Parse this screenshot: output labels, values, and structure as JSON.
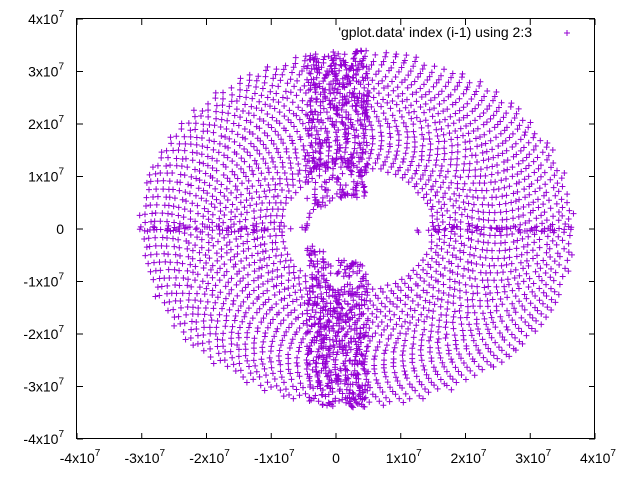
{
  "chart_data": {
    "type": "scatter",
    "title": "",
    "xlabel": "",
    "ylabel": "",
    "xlim": [
      -40000000,
      40000000
    ],
    "ylim": [
      -40000000,
      40000000
    ],
    "x_ticks": [
      {
        "value": -40000000,
        "mantissa": "-4x10",
        "exp": "7"
      },
      {
        "value": -30000000,
        "mantissa": "-3x10",
        "exp": "7"
      },
      {
        "value": -20000000,
        "mantissa": "-2x10",
        "exp": "7"
      },
      {
        "value": -10000000,
        "mantissa": "-1x10",
        "exp": "7"
      },
      {
        "value": 0,
        "mantissa": "0",
        "exp": ""
      },
      {
        "value": 10000000,
        "mantissa": "1x10",
        "exp": "7"
      },
      {
        "value": 20000000,
        "mantissa": "2x10",
        "exp": "7"
      },
      {
        "value": 30000000,
        "mantissa": "3x10",
        "exp": "7"
      },
      {
        "value": 40000000,
        "mantissa": "4x10",
        "exp": "7"
      }
    ],
    "y_ticks": [
      {
        "value": 40000000,
        "mantissa": "4x10",
        "exp": "7"
      },
      {
        "value": 30000000,
        "mantissa": "3x10",
        "exp": "7"
      },
      {
        "value": 20000000,
        "mantissa": "2x10",
        "exp": "7"
      },
      {
        "value": 10000000,
        "mantissa": "1x10",
        "exp": "7"
      },
      {
        "value": 0,
        "mantissa": "0",
        "exp": ""
      },
      {
        "value": -10000000,
        "mantissa": "-1x10",
        "exp": "7"
      },
      {
        "value": -20000000,
        "mantissa": "-2x10",
        "exp": "7"
      },
      {
        "value": -30000000,
        "mantissa": "-3x10",
        "exp": "7"
      },
      {
        "value": -40000000,
        "mantissa": "-4x10",
        "exp": "7"
      }
    ],
    "grid": false,
    "legend_position": "top-right",
    "series": [
      {
        "name": "'gplot.data' index (i-1) using 2:3",
        "marker": "plus",
        "color": "#9400d3",
        "shape": {
          "x_extent": [
            -30500000,
            37000000
          ],
          "y_extent": [
            -34000000,
            34000000
          ],
          "hole_x_extent": [
            -4500000,
            12500000
          ],
          "hole_y_extent": [
            -6000000,
            6000000
          ],
          "dense_band_x": [
            -4500000,
            5000000
          ],
          "dense_axis_y": 0
        }
      }
    ]
  }
}
